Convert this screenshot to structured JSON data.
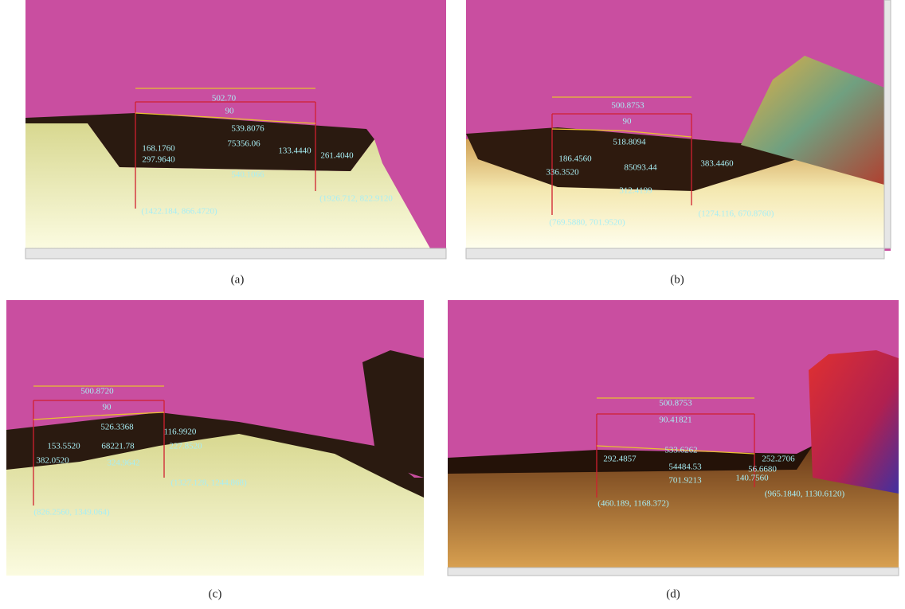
{
  "panels": [
    {
      "caption": "(a)",
      "measurements": [
        "502.70",
        "90",
        "539.8076",
        "168.1760",
        "75356.06",
        "133.4440",
        "297.9640",
        "261.4040",
        "540.1066",
        "(1926.712, 822.9120",
        "(1422.184, 866.4720)"
      ]
    },
    {
      "caption": "(b)",
      "measurements": [
        "500.8753",
        "90",
        "518.8094",
        "186.4560",
        "336.3520",
        "85093.44",
        "383.4460",
        "312.4199",
        "(769.5880, 701.9520)",
        "(1274.116, 670.8760)"
      ]
    },
    {
      "caption": "(c)",
      "measurements": [
        "500.8720",
        "90",
        "526.3368",
        "116.9920",
        "153.5520",
        "68221.78",
        "227.8520",
        "382.0520",
        "324.9642",
        "(1327.128, 1244.868)",
        "(826.2560, 1349.064)"
      ]
    },
    {
      "caption": "(d)",
      "measurements": [
        "500.8753",
        "90.41821",
        "533.6262",
        "292.4857",
        "252.2706",
        "54484.53",
        "56.6680",
        "701.9213",
        "140.7560",
        "(965.1840, 1130.6120)",
        "(460.189, 1168.372)"
      ]
    }
  ]
}
